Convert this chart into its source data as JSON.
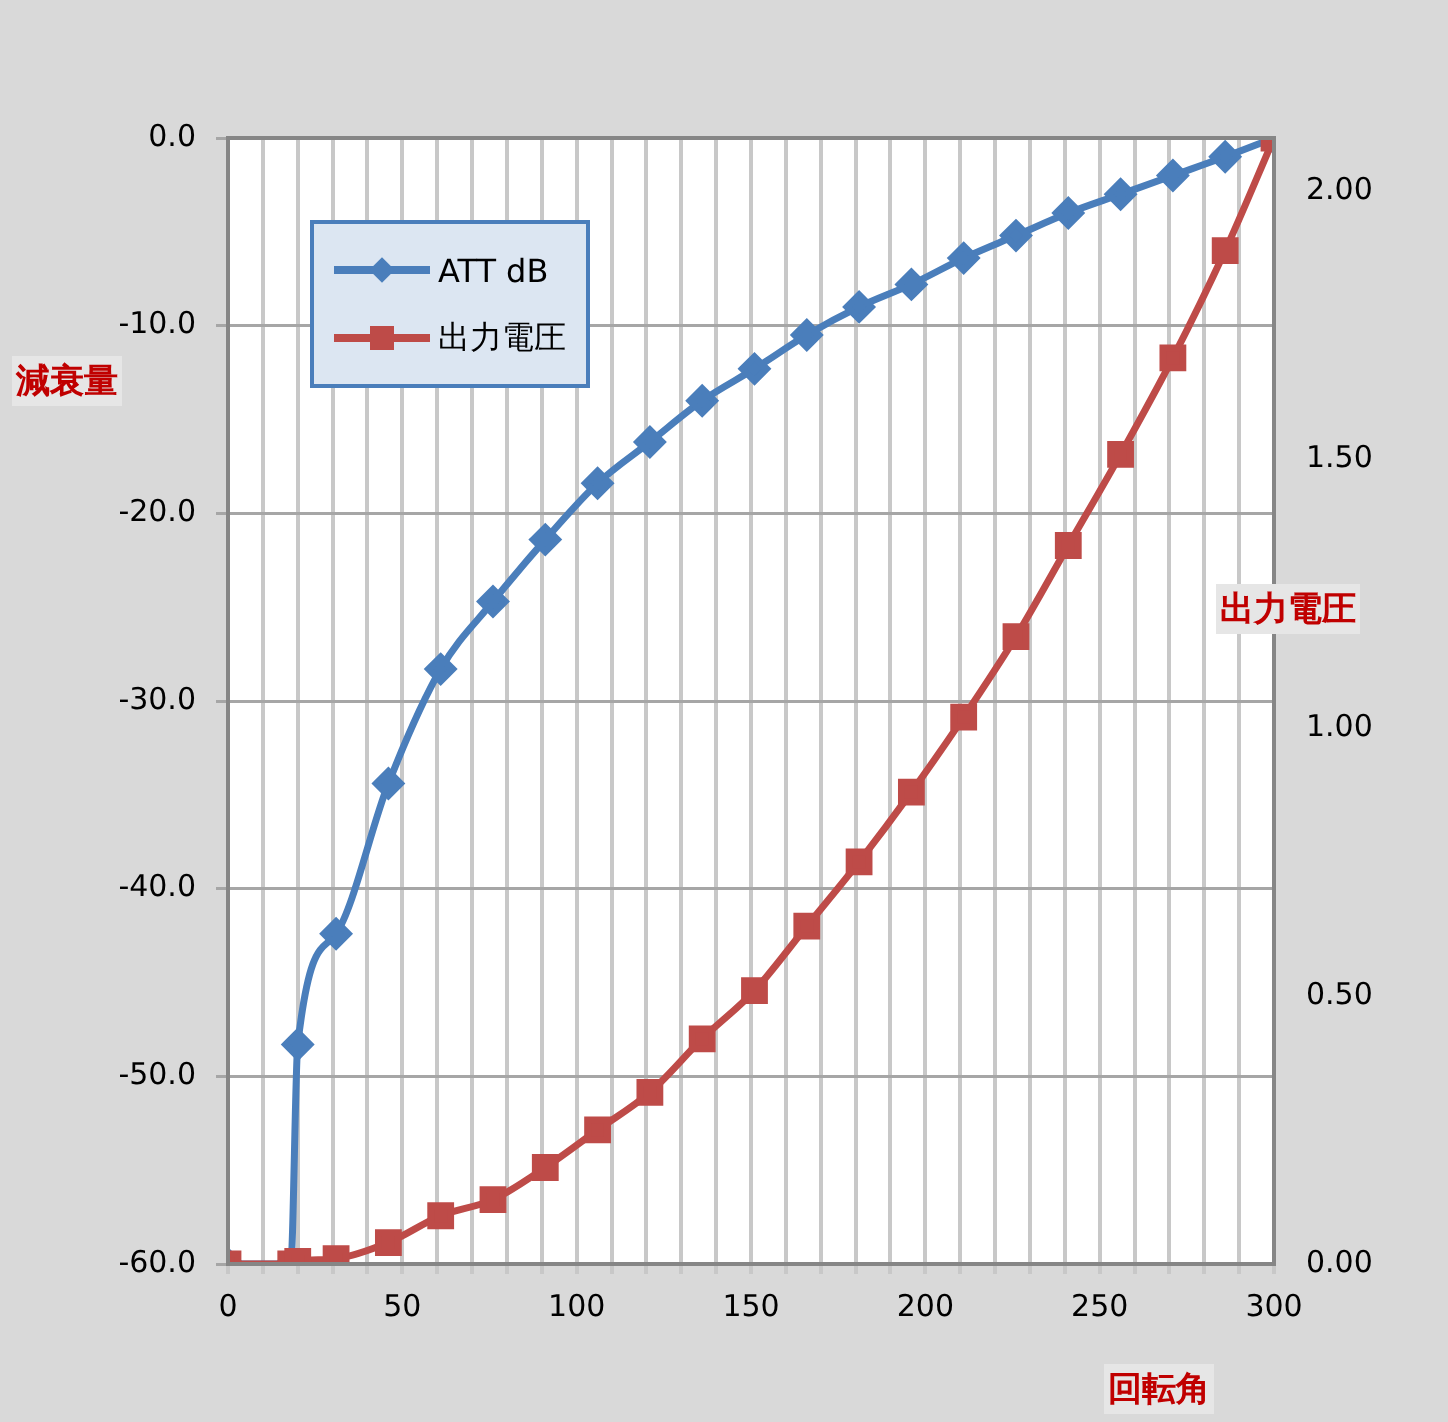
{
  "chart_data": {
    "type": "line",
    "xlabel": "回転角",
    "ylabel": "減衰量",
    "y2label": "出力電圧",
    "x": [
      0,
      18,
      20,
      31,
      46,
      61,
      76,
      91,
      106,
      121,
      136,
      151,
      166,
      181,
      196,
      211,
      226,
      241,
      256,
      271,
      286,
      300
    ],
    "series": [
      {
        "name": "ATT dB",
        "color": "#4a7ebb",
        "marker": "diamond",
        "values": [
          -60,
          -60,
          -48.3,
          -42.4,
          -34.4,
          -28.3,
          -24.7,
          -21.4,
          -18.4,
          -16.2,
          -14.0,
          -12.3,
          -10.5,
          -9.0,
          -7.8,
          -6.4,
          -5.2,
          -4.0,
          -3.0,
          -2.0,
          -1.0,
          0
        ]
      },
      {
        "name": "出力電圧",
        "color": "#be4b48",
        "marker": "square",
        "axis": "y2",
        "values": [
          0,
          0,
          0.005,
          0.01,
          0.04,
          0.09,
          0.12,
          0.18,
          0.25,
          0.32,
          0.42,
          0.51,
          0.63,
          0.75,
          0.88,
          1.02,
          1.17,
          1.34,
          1.51,
          1.69,
          1.89,
          2.1
        ]
      }
    ],
    "xlim": [
      0,
      300
    ],
    "xticks": [
      0,
      {
        "value": 10,
        "label": null
      },
      {
        "value": 20,
        "label": null
      },
      {
        "value": 30,
        "label": null
      },
      {
        "value": 40,
        "label": null
      },
      50,
      {
        "value": 60,
        "label": null
      },
      {
        "value": 70,
        "label": null
      },
      {
        "value": 80,
        "label": null
      },
      {
        "value": 90,
        "label": null
      },
      100,
      {
        "value": 110,
        "label": null
      },
      {
        "value": 120,
        "label": null
      },
      {
        "value": 130,
        "label": null
      },
      {
        "value": 140,
        "label": null
      },
      150,
      {
        "value": 160,
        "label": null
      },
      {
        "value": 170,
        "label": null
      },
      {
        "value": 180,
        "label": null
      },
      {
        "value": 190,
        "label": null
      },
      200,
      {
        "value": 210,
        "label": null
      },
      {
        "value": 220,
        "label": null
      },
      {
        "value": 230,
        "label": null
      },
      {
        "value": 240,
        "label": null
      },
      250,
      {
        "value": 260,
        "label": null
      },
      {
        "value": 270,
        "label": null
      },
      {
        "value": 280,
        "label": null
      },
      {
        "value": 290,
        "label": null
      },
      300
    ],
    "ylim": [
      -60,
      0
    ],
    "yticks": [
      {
        "value": -60,
        "label": "-60.0"
      },
      {
        "value": -50,
        "label": "-50.0"
      },
      {
        "value": -40,
        "label": "-40.0"
      },
      {
        "value": -30,
        "label": "-30.0"
      },
      {
        "value": -20,
        "label": "-20.0"
      },
      {
        "value": -10,
        "label": "-10.0"
      },
      {
        "value": 0,
        "label": "0.0"
      }
    ],
    "y2lim": [
      0,
      2.1
    ],
    "y2ticks": [
      {
        "value": 0,
        "label": "0.00"
      },
      {
        "value": 0.5,
        "label": "0.50"
      },
      {
        "value": 1,
        "label": "1.00"
      },
      {
        "value": 1.5,
        "label": "1.50"
      },
      {
        "value": 2,
        "label": "2.00"
      }
    ],
    "grid": true,
    "legend": "top left"
  }
}
